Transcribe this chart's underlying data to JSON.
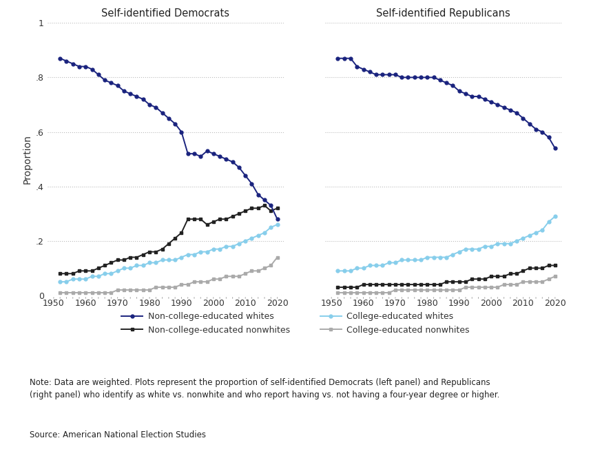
{
  "title_left": "Self-identified Democrats",
  "title_right": "Self-identified Republicans",
  "ylabel": "Proportion",
  "note": "Note: Data are weighted. Plots represent the proportion of self-identified Democrats (left panel) and Republicans\n(right panel) who identify as white vs. nonwhite and who report having vs. not having a four-year degree or higher.",
  "source": "Source: American National Election Studies",
  "ylim": [
    0,
    1.0
  ],
  "yticks": [
    0,
    0.2,
    0.4,
    0.6,
    0.8,
    1.0
  ],
  "ytick_labels": [
    "0",
    ".2",
    ".4",
    ".6",
    ".8",
    "1"
  ],
  "xticks": [
    1950,
    1960,
    1970,
    1980,
    1990,
    2000,
    2010,
    2020
  ],
  "dem_years": [
    1952,
    1954,
    1956,
    1958,
    1960,
    1962,
    1964,
    1966,
    1968,
    1970,
    1972,
    1974,
    1976,
    1978,
    1980,
    1982,
    1984,
    1986,
    1988,
    1990,
    1992,
    1994,
    1996,
    1998,
    2000,
    2002,
    2004,
    2006,
    2008,
    2010,
    2012,
    2014,
    2016,
    2018,
    2020
  ],
  "dem_noncollege_white": [
    0.87,
    0.86,
    0.85,
    0.84,
    0.84,
    0.83,
    0.81,
    0.79,
    0.78,
    0.77,
    0.75,
    0.74,
    0.73,
    0.72,
    0.7,
    0.69,
    0.67,
    0.65,
    0.63,
    0.6,
    0.52,
    0.52,
    0.51,
    0.53,
    0.52,
    0.51,
    0.5,
    0.49,
    0.47,
    0.44,
    0.41,
    0.37,
    0.35,
    0.33,
    0.28
  ],
  "dem_college_white": [
    0.05,
    0.05,
    0.06,
    0.06,
    0.06,
    0.07,
    0.07,
    0.08,
    0.08,
    0.09,
    0.1,
    0.1,
    0.11,
    0.11,
    0.12,
    0.12,
    0.13,
    0.13,
    0.13,
    0.14,
    0.15,
    0.15,
    0.16,
    0.16,
    0.17,
    0.17,
    0.18,
    0.18,
    0.19,
    0.2,
    0.21,
    0.22,
    0.23,
    0.25,
    0.26
  ],
  "dem_noncollege_nonwhite": [
    0.08,
    0.08,
    0.08,
    0.09,
    0.09,
    0.09,
    0.1,
    0.11,
    0.12,
    0.13,
    0.13,
    0.14,
    0.14,
    0.15,
    0.16,
    0.16,
    0.17,
    0.19,
    0.21,
    0.23,
    0.28,
    0.28,
    0.28,
    0.26,
    0.27,
    0.28,
    0.28,
    0.29,
    0.3,
    0.31,
    0.32,
    0.32,
    0.33,
    0.31,
    0.32
  ],
  "dem_college_nonwhite": [
    0.01,
    0.01,
    0.01,
    0.01,
    0.01,
    0.01,
    0.01,
    0.01,
    0.01,
    0.02,
    0.02,
    0.02,
    0.02,
    0.02,
    0.02,
    0.03,
    0.03,
    0.03,
    0.03,
    0.04,
    0.04,
    0.05,
    0.05,
    0.05,
    0.06,
    0.06,
    0.07,
    0.07,
    0.07,
    0.08,
    0.09,
    0.09,
    0.1,
    0.11,
    0.14
  ],
  "rep_years": [
    1952,
    1954,
    1956,
    1958,
    1960,
    1962,
    1964,
    1966,
    1968,
    1970,
    1972,
    1974,
    1976,
    1978,
    1980,
    1982,
    1984,
    1986,
    1988,
    1990,
    1992,
    1994,
    1996,
    1998,
    2000,
    2002,
    2004,
    2006,
    2008,
    2010,
    2012,
    2014,
    2016,
    2018,
    2020
  ],
  "rep_noncollege_white": [
    0.87,
    0.87,
    0.87,
    0.84,
    0.83,
    0.82,
    0.81,
    0.81,
    0.81,
    0.81,
    0.8,
    0.8,
    0.8,
    0.8,
    0.8,
    0.8,
    0.79,
    0.78,
    0.77,
    0.75,
    0.74,
    0.73,
    0.73,
    0.72,
    0.71,
    0.7,
    0.69,
    0.68,
    0.67,
    0.65,
    0.63,
    0.61,
    0.6,
    0.58,
    0.54
  ],
  "rep_college_white": [
    0.09,
    0.09,
    0.09,
    0.1,
    0.1,
    0.11,
    0.11,
    0.11,
    0.12,
    0.12,
    0.13,
    0.13,
    0.13,
    0.13,
    0.14,
    0.14,
    0.14,
    0.14,
    0.15,
    0.16,
    0.17,
    0.17,
    0.17,
    0.18,
    0.18,
    0.19,
    0.19,
    0.19,
    0.2,
    0.21,
    0.22,
    0.23,
    0.24,
    0.27,
    0.29
  ],
  "rep_noncollege_nonwhite": [
    0.03,
    0.03,
    0.03,
    0.03,
    0.04,
    0.04,
    0.04,
    0.04,
    0.04,
    0.04,
    0.04,
    0.04,
    0.04,
    0.04,
    0.04,
    0.04,
    0.04,
    0.05,
    0.05,
    0.05,
    0.05,
    0.06,
    0.06,
    0.06,
    0.07,
    0.07,
    0.07,
    0.08,
    0.08,
    0.09,
    0.1,
    0.1,
    0.1,
    0.11,
    0.11
  ],
  "rep_college_nonwhite": [
    0.01,
    0.01,
    0.01,
    0.01,
    0.01,
    0.01,
    0.01,
    0.01,
    0.01,
    0.02,
    0.02,
    0.02,
    0.02,
    0.02,
    0.02,
    0.02,
    0.02,
    0.02,
    0.02,
    0.02,
    0.03,
    0.03,
    0.03,
    0.03,
    0.03,
    0.03,
    0.04,
    0.04,
    0.04,
    0.05,
    0.05,
    0.05,
    0.05,
    0.06,
    0.07
  ],
  "color_noncollege_white": "#1a237e",
  "color_college_white": "#87ceeb",
  "color_noncollege_nonwhite": "#222222",
  "color_college_nonwhite": "#aaaaaa",
  "legend_labels": [
    "Non-college-educated whites",
    "College-educated whites",
    "Non-college-educated nonwhites",
    "College-educated nonwhites"
  ],
  "background_color": "#ffffff"
}
